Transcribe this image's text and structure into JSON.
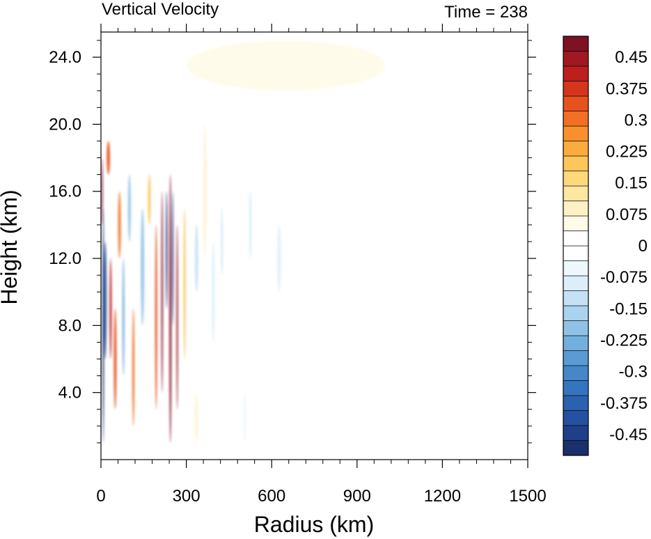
{
  "chart_data": {
    "type": "heatmap",
    "title": "Vertical Velocity",
    "time_label": "Time = 238",
    "xlabel": "Radius (km)",
    "ylabel": "Height (km)",
    "xlim": [
      0,
      1500
    ],
    "ylim": [
      0,
      25.5
    ],
    "x_ticks": [
      0,
      300,
      600,
      900,
      1200,
      1500
    ],
    "x_tick_labels": [
      "0",
      "300",
      "600",
      "900",
      "1200",
      "1500"
    ],
    "y_ticks": [
      4,
      8,
      12,
      16,
      20,
      24
    ],
    "y_tick_labels": [
      "4.0",
      "8.0",
      "12.0",
      "16.0",
      "20.0",
      "24.0"
    ],
    "colorbar": {
      "levels": [
        -0.5,
        -0.475,
        -0.45,
        -0.425,
        -0.4,
        -0.375,
        -0.35,
        -0.325,
        -0.3,
        -0.275,
        -0.25,
        -0.225,
        -0.2,
        -0.175,
        -0.15,
        -0.125,
        -0.1,
        -0.075,
        -0.05,
        -0.025,
        0,
        0.025,
        0.05,
        0.075,
        0.1,
        0.125,
        0.15,
        0.175,
        0.2,
        0.225,
        0.25,
        0.275,
        0.3,
        0.325,
        0.35,
        0.375,
        0.4,
        0.425,
        0.45,
        0.475,
        0.5
      ],
      "labels": [
        "0.45",
        "0.375",
        "0.3",
        "0.225",
        "0.15",
        "0.075",
        "0",
        "-0.075",
        "-0.15",
        "-0.225",
        "-0.3",
        "-0.375",
        "-0.45"
      ],
      "label_values": [
        0.45,
        0.375,
        0.3,
        0.225,
        0.15,
        0.075,
        0,
        -0.075,
        -0.15,
        -0.225,
        -0.3,
        -0.375,
        -0.45
      ],
      "colors": [
        "#1b2f6a",
        "#1f3f88",
        "#2451a0",
        "#2b62b0",
        "#3574bf",
        "#4587c9",
        "#5a9bd3",
        "#73afdd",
        "#8fc2e6",
        "#aad3ee",
        "#c4e2f4",
        "#dbeef9",
        "#eef7fc",
        "#ffffff",
        "#ffffff",
        "#fffbe8",
        "#fff1c6",
        "#fee7a0",
        "#fed97c",
        "#fdc55a",
        "#fcac3f",
        "#f98f2d",
        "#f27024",
        "#e5521f",
        "#d4351d",
        "#bd1f1d",
        "#a01820",
        "#7f1222"
      ]
    },
    "features": [
      {
        "r": 5,
        "z0": 1,
        "z1": 15,
        "w": 6,
        "value": -0.55
      },
      {
        "r": 10,
        "z0": 6,
        "z1": 13,
        "w": 10,
        "value": -0.4
      },
      {
        "r": 2,
        "z0": 14,
        "z1": 18,
        "w": 4,
        "value": 0.5
      },
      {
        "r": 20,
        "z0": 17,
        "z1": 19,
        "w": 12,
        "value": 0.35
      },
      {
        "r": 30,
        "z0": 6,
        "z1": 12,
        "w": 8,
        "value": 0.4
      },
      {
        "r": 45,
        "z0": 3,
        "z1": 9,
        "w": 10,
        "value": 0.35
      },
      {
        "r": 60,
        "z0": 12,
        "z1": 16,
        "w": 10,
        "value": 0.3
      },
      {
        "r": 75,
        "z0": 5,
        "z1": 12,
        "w": 8,
        "value": -0.25
      },
      {
        "r": 95,
        "z0": 13,
        "z1": 17,
        "w": 10,
        "value": -0.2
      },
      {
        "r": 110,
        "z0": 2,
        "z1": 9,
        "w": 8,
        "value": 0.3
      },
      {
        "r": 140,
        "z0": 8,
        "z1": 15,
        "w": 12,
        "value": -0.2
      },
      {
        "r": 165,
        "z0": 14,
        "z1": 17,
        "w": 10,
        "value": 0.2
      },
      {
        "r": 190,
        "z0": 3,
        "z1": 14,
        "w": 8,
        "value": 0.35
      },
      {
        "r": 212,
        "z0": 4,
        "z1": 16,
        "w": 6,
        "value": 0.5
      },
      {
        "r": 228,
        "z0": 9,
        "z1": 16,
        "w": 6,
        "value": -0.5
      },
      {
        "r": 240,
        "z0": 1,
        "z1": 17,
        "w": 8,
        "value": 0.5
      },
      {
        "r": 250,
        "z0": 8,
        "z1": 16,
        "w": 5,
        "value": -0.45
      },
      {
        "r": 265,
        "z0": 3,
        "z1": 14,
        "w": 6,
        "value": 0.45
      },
      {
        "r": 290,
        "z0": 6,
        "z1": 15,
        "w": 8,
        "value": 0.2
      },
      {
        "r": 330,
        "z0": 10,
        "z1": 14,
        "w": 12,
        "value": -0.12
      },
      {
        "r": 360,
        "z0": 12,
        "z1": 20,
        "w": 10,
        "value": 0.08
      },
      {
        "r": 390,
        "z0": 7,
        "z1": 13,
        "w": 10,
        "value": -0.08
      },
      {
        "r": 420,
        "z0": 11,
        "z1": 15,
        "w": 10,
        "value": -0.1
      },
      {
        "r": 520,
        "z0": 12,
        "z1": 16,
        "w": 10,
        "value": -0.08
      },
      {
        "r": 620,
        "z0": 10,
        "z1": 14,
        "w": 12,
        "value": -0.08
      },
      {
        "r": 330,
        "z0": 1,
        "z1": 4,
        "w": 10,
        "value": 0.1
      },
      {
        "r": 500,
        "z0": 1,
        "z1": 4,
        "w": 10,
        "value": -0.06
      },
      {
        "r": 300,
        "z0": 22,
        "z1": 25,
        "w": 700,
        "value": 0.05
      }
    ]
  }
}
